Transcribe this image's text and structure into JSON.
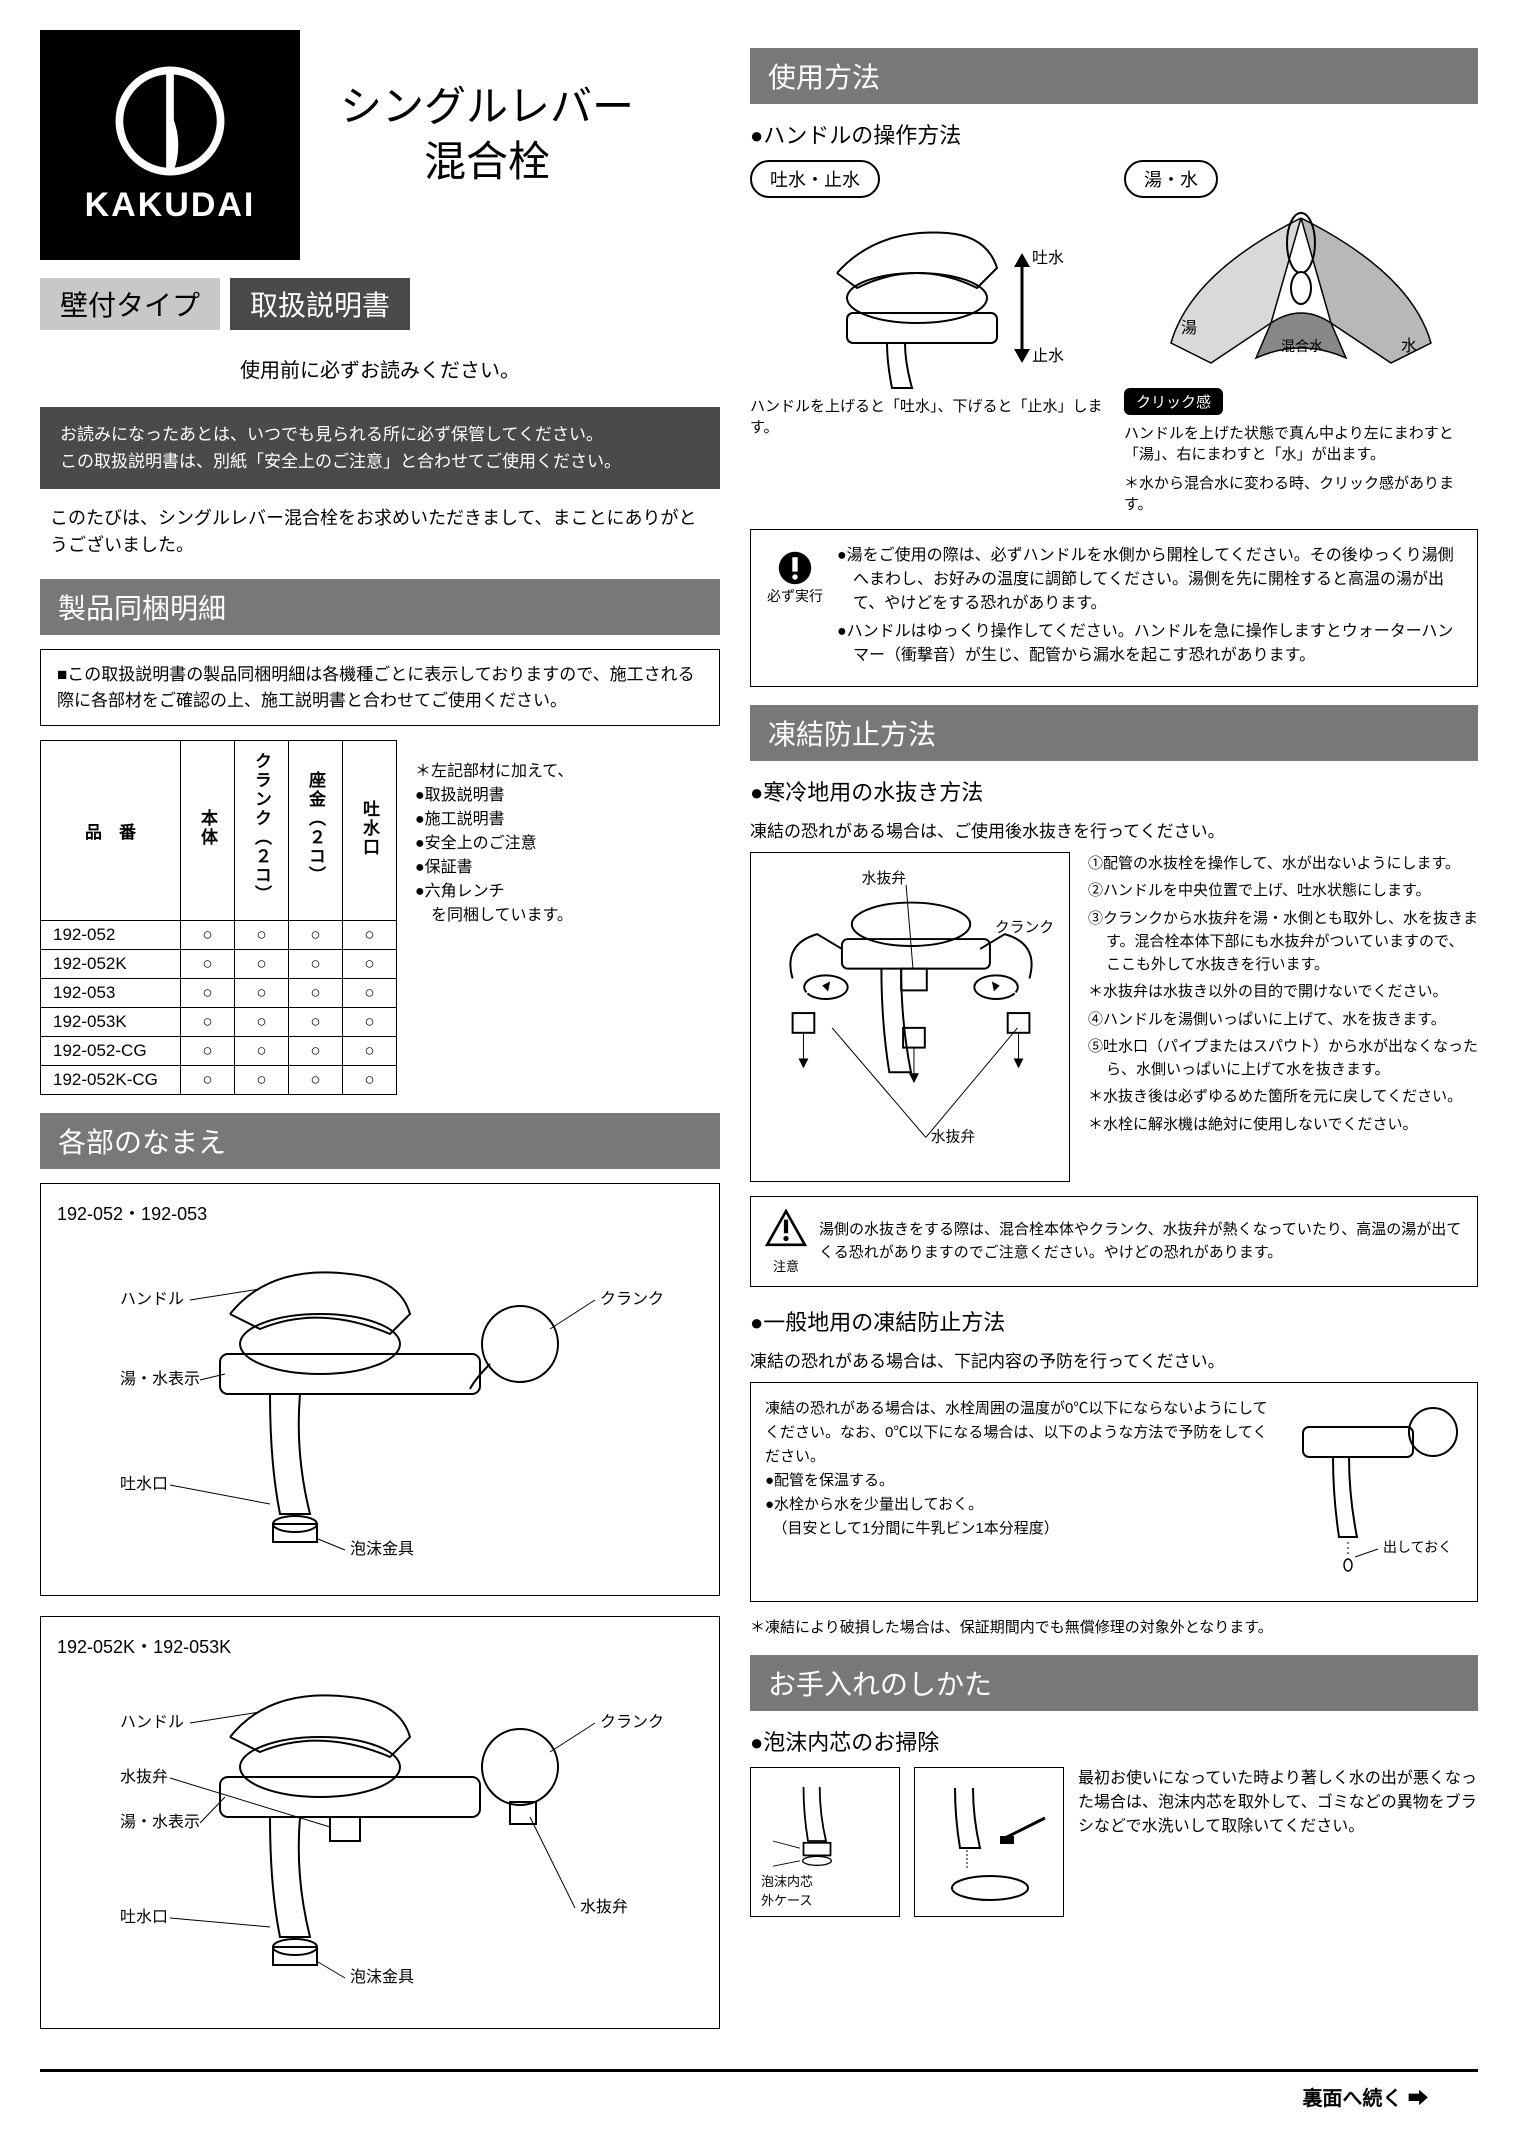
{
  "brand": "KAKUDAI",
  "product_title_1": "シングルレバー",
  "product_title_2": "混合栓",
  "badge_type": "壁付タイプ",
  "badge_manual": "取扱説明書",
  "read_first": "使用前に必ずお読みください。",
  "notice_1": "お読みになったあとは、いつでも見られる所に必ず保管してください。",
  "notice_2": "この取扱説明書は、別紙「安全上のご注意」と合わせてご使用ください。",
  "thanks": "このたびは、シングルレバー混合栓をお求めいただきまして、まことにありがとうございました。",
  "section_parts": "製品同梱明細",
  "parts_note": "■この取扱説明書の製品同梱明細は各機種ごとに表示しておりますので、施工される際に各部材をご確認の上、施工説明書と合わせてご使用ください。",
  "parts_table": {
    "headers": [
      "品　番",
      "本体",
      "クランク（２コ）",
      "座金（２コ）",
      "吐水口"
    ],
    "rows": [
      [
        "192-052",
        "○",
        "○",
        "○",
        "○"
      ],
      [
        "192-052K",
        "○",
        "○",
        "○",
        "○"
      ],
      [
        "192-053",
        "○",
        "○",
        "○",
        "○"
      ],
      [
        "192-053K",
        "○",
        "○",
        "○",
        "○"
      ],
      [
        "192-052-CG",
        "○",
        "○",
        "○",
        "○"
      ],
      [
        "192-052K-CG",
        "○",
        "○",
        "○",
        "○"
      ]
    ],
    "side_note_title": "＊左記部材に加えて、",
    "side_notes": [
      "●取扱説明書",
      "●施工説明書",
      "●安全上のご注意",
      "●保証書",
      "●六角レンチ",
      "　を同梱しています。"
    ]
  },
  "section_names": "各部のなまえ",
  "diag1_models": "192-052・192-053",
  "diag2_models": "192-052K・192-053K",
  "labels": {
    "handle": "ハンドル",
    "crank": "クランク",
    "hotcold": "湯・水表示",
    "spout": "吐水口",
    "aerator": "泡沫金具",
    "drain": "水抜弁"
  },
  "section_usage": "使用方法",
  "usage_heading": "●ハンドルの操作方法",
  "op_left": {
    "pill": "吐水・止水",
    "out": "吐水",
    "stop": "止水",
    "caption": "ハンドルを上げると「吐水」、下げると「止水」します。"
  },
  "op_right": {
    "pill": "湯・水",
    "hot": "湯",
    "mix": "混合水",
    "cold": "水",
    "click": "クリック感",
    "cap1": "ハンドルを上げた状態で真ん中より左にまわすと「湯」、右にまわすと「水」が出ます。",
    "cap2": "＊水から混合水に変わる時、クリック感があります。"
  },
  "usage_warn_label": "必ず実行",
  "usage_warn": [
    "●湯をご使用の際は、必ずハンドルを水側から開栓してください。その後ゆっくり湯側へまわし、お好みの温度に調節してください。湯側を先に開栓すると高温の湯が出て、やけどをする恐れがあります。",
    "●ハンドルはゆっくり操作してください。ハンドルを急に操作しますとウォーターハンマー（衝撃音）が生じ、配管から漏水を起こす恐れがあります。"
  ],
  "section_freeze": "凍結防止方法",
  "freeze_heading": "●寒冷地用の水抜き方法",
  "freeze_lead": "凍結の恐れがある場合は、ご使用後水抜きを行ってください。",
  "freeze_diag_labels": {
    "drain": "水抜弁",
    "crank": "クランク"
  },
  "freeze_steps": [
    "①配管の水抜栓を操作して、水が出ないようにします。",
    "②ハンドルを中央位置で上げ、吐水状態にします。",
    "③クランクから水抜弁を湯・水側とも取外し、水を抜きます。混合栓本体下部にも水抜弁がついていますので、ここも外して水抜きを行います。",
    "＊水抜弁は水抜き以外の目的で開けないでください。",
    "④ハンドルを湯側いっぱいに上げて、水を抜きます。",
    "⑤吐水口（パイプまたはスパウト）から水が出なくなったら、水側いっぱいに上げて水を抜きます。",
    "＊水抜き後は必ずゆるめた箇所を元に戻してください。",
    "＊水栓に解氷機は絶対に使用しないでください。"
  ],
  "freeze_warn_label": "注意",
  "freeze_warn": "湯側の水抜きをする際は、混合栓本体やクランク、水抜弁が熱くなっていたり、高温の湯が出てくる恐れがありますのでご注意ください。やけどの恐れがあります。",
  "general_heading": "●一般地用の凍結防止方法",
  "general_lead": "凍結の恐れがある場合は、下記内容の予防を行ってください。",
  "general_box": [
    "凍結の恐れがある場合は、水栓周囲の温度が0℃以下にならないようにしてください。なお、0℃以下になる場合は、以下のような方法で予防をしてください。",
    "●配管を保温する。",
    "●水栓から水を少量出しておく。",
    "　（目安として1分間に牛乳ビン1本分程度）"
  ],
  "general_diag": {
    "out": "出しておく"
  },
  "general_footnote": "＊凍結により破損した場合は、保証期間内でも無償修理の対象外となります。",
  "section_care": "お手入れのしかた",
  "care_heading": "●泡沫内芯のお掃除",
  "care_labels": {
    "core": "泡沫内芯",
    "case": "外ケース"
  },
  "care_text": "最初お使いになっていた時より著しく水の出が悪くなった場合は、泡沫内芯を取外して、ゴミなどの異物をブラシなどで水洗いして取除いてください。",
  "footer": "裏面へ続く ➡",
  "colors": {
    "dark_bg": "#4a4a4a",
    "mid_gray": "#787878",
    "light_gray": "#c8c8c8",
    "shade": "#d9d9d9"
  }
}
